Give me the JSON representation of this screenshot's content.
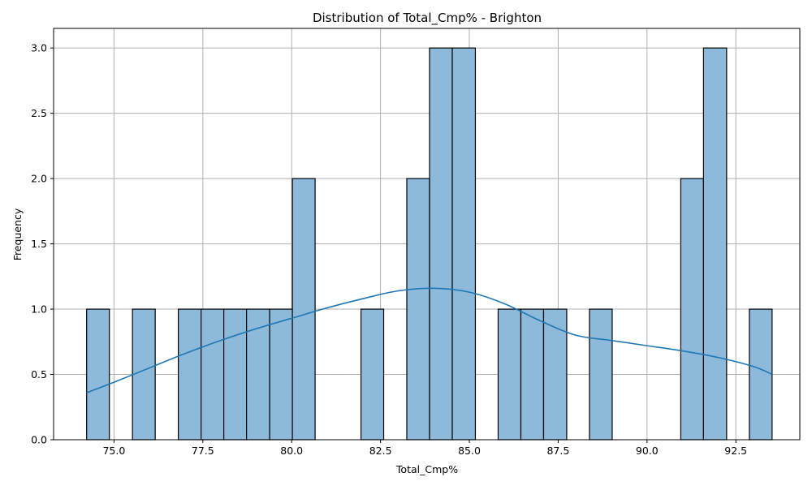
{
  "chart_data": {
    "type": "bar",
    "title": "Distribution of Total_Cmp% - Brighton",
    "xlabel": "Total_Cmp%",
    "ylabel": "Frequency",
    "xlim": [
      73.3,
      94.3
    ],
    "ylim": [
      0,
      3.15
    ],
    "grid": true,
    "x_ticks": [
      75.0,
      77.5,
      80.0,
      82.5,
      85.0,
      87.5,
      90.0,
      92.5
    ],
    "x_tick_labels": [
      "75.0",
      "77.5",
      "80.0",
      "82.5",
      "85.0",
      "87.5",
      "90.0",
      "92.5"
    ],
    "y_ticks": [
      0.0,
      0.5,
      1.0,
      1.5,
      2.0,
      2.5,
      3.0
    ],
    "y_tick_labels": [
      "0.0",
      "0.5",
      "1.0",
      "1.5",
      "2.0",
      "2.5",
      "3.0"
    ],
    "bins": [
      {
        "start": 74.23,
        "end": 74.87,
        "count": 1
      },
      {
        "start": 75.52,
        "end": 76.16,
        "count": 1
      },
      {
        "start": 76.81,
        "end": 77.45,
        "count": 1
      },
      {
        "start": 77.45,
        "end": 78.09,
        "count": 1
      },
      {
        "start": 78.09,
        "end": 78.73,
        "count": 1
      },
      {
        "start": 78.73,
        "end": 79.38,
        "count": 1
      },
      {
        "start": 79.38,
        "end": 80.02,
        "count": 1
      },
      {
        "start": 80.02,
        "end": 80.66,
        "count": 2
      },
      {
        "start": 81.95,
        "end": 82.59,
        "count": 1
      },
      {
        "start": 83.24,
        "end": 83.88,
        "count": 2
      },
      {
        "start": 83.88,
        "end": 84.52,
        "count": 3
      },
      {
        "start": 84.52,
        "end": 85.17,
        "count": 3
      },
      {
        "start": 85.81,
        "end": 86.45,
        "count": 1
      },
      {
        "start": 86.45,
        "end": 87.09,
        "count": 1
      },
      {
        "start": 87.09,
        "end": 87.74,
        "count": 1
      },
      {
        "start": 88.38,
        "end": 89.02,
        "count": 1
      },
      {
        "start": 90.95,
        "end": 91.59,
        "count": 2
      },
      {
        "start": 91.59,
        "end": 92.24,
        "count": 3
      },
      {
        "start": 92.88,
        "end": 93.52,
        "count": 1
      }
    ],
    "kde": {
      "x": [
        74.23,
        75.0,
        76.0,
        77.0,
        78.0,
        79.0,
        80.0,
        81.0,
        82.0,
        83.0,
        84.0,
        85.0,
        86.0,
        87.0,
        88.0,
        89.0,
        90.0,
        91.0,
        92.0,
        93.0,
        93.52
      ],
      "y": [
        0.36,
        0.44,
        0.55,
        0.66,
        0.76,
        0.85,
        0.93,
        1.01,
        1.08,
        1.14,
        1.16,
        1.13,
        1.04,
        0.91,
        0.8,
        0.76,
        0.72,
        0.68,
        0.63,
        0.56,
        0.5
      ]
    },
    "colors": {
      "bar_fill": "#8db9db",
      "bar_edge": "#000000",
      "kde_line": "#1f77b4",
      "grid": "#b0b0b0"
    }
  }
}
